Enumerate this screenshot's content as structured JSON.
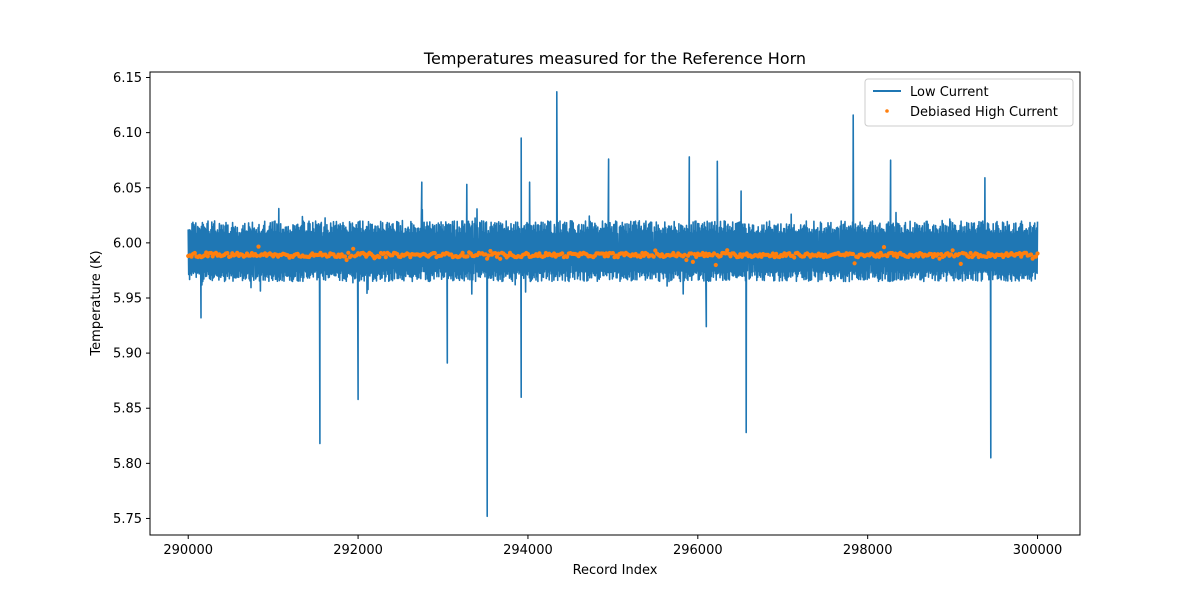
{
  "chart_data": {
    "type": "line",
    "title": "Temperatures measured for the Reference Horn",
    "xlabel": "Record Index",
    "ylabel": "Temperature (K)",
    "xlim": [
      289550,
      300500
    ],
    "ylim": [
      5.735,
      6.155
    ],
    "x_ticks": [
      290000,
      292000,
      294000,
      296000,
      298000,
      300000
    ],
    "x_tick_labels": [
      "290000",
      "292000",
      "294000",
      "296000",
      "298000",
      "300000"
    ],
    "y_ticks": [
      5.75,
      5.8,
      5.85,
      5.9,
      5.95,
      6.0,
      6.05,
      6.1,
      6.15
    ],
    "y_tick_labels": [
      "5.75",
      "5.80",
      "5.85",
      "5.90",
      "5.95",
      "6.00",
      "6.05",
      "6.10",
      "6.15"
    ],
    "grid": false,
    "legend_position": "top-right",
    "series": [
      {
        "name": "Low Current",
        "style": "line",
        "color": "#1f77b4",
        "x_range": [
          290000,
          300000
        ],
        "baseline": 5.99,
        "band": [
          5.965,
          6.02
        ],
        "spikes": [
          {
            "x": 291550,
            "y": 5.818
          },
          {
            "x": 292000,
            "y": 5.858
          },
          {
            "x": 293050,
            "y": 5.891
          },
          {
            "x": 293520,
            "y": 5.752
          },
          {
            "x": 293920,
            "y": 5.86
          },
          {
            "x": 294340,
            "y": 6.137
          },
          {
            "x": 293920,
            "y": 6.095
          },
          {
            "x": 294020,
            "y": 6.055
          },
          {
            "x": 294950,
            "y": 6.076
          },
          {
            "x": 295900,
            "y": 6.078
          },
          {
            "x": 296230,
            "y": 6.074
          },
          {
            "x": 296570,
            "y": 5.828
          },
          {
            "x": 297830,
            "y": 6.116
          },
          {
            "x": 298270,
            "y": 6.075
          },
          {
            "x": 299380,
            "y": 6.059
          },
          {
            "x": 299450,
            "y": 5.805
          },
          {
            "x": 292750,
            "y": 6.055
          },
          {
            "x": 293280,
            "y": 6.053
          },
          {
            "x": 296510,
            "y": 6.047
          },
          {
            "x": 296100,
            "y": 5.924
          },
          {
            "x": 290150,
            "y": 5.932
          }
        ]
      },
      {
        "name": "Debiased High Current",
        "style": "scatter",
        "color": "#ff7f0e",
        "x_range": [
          290000,
          300000
        ],
        "value": 5.989
      }
    ]
  }
}
